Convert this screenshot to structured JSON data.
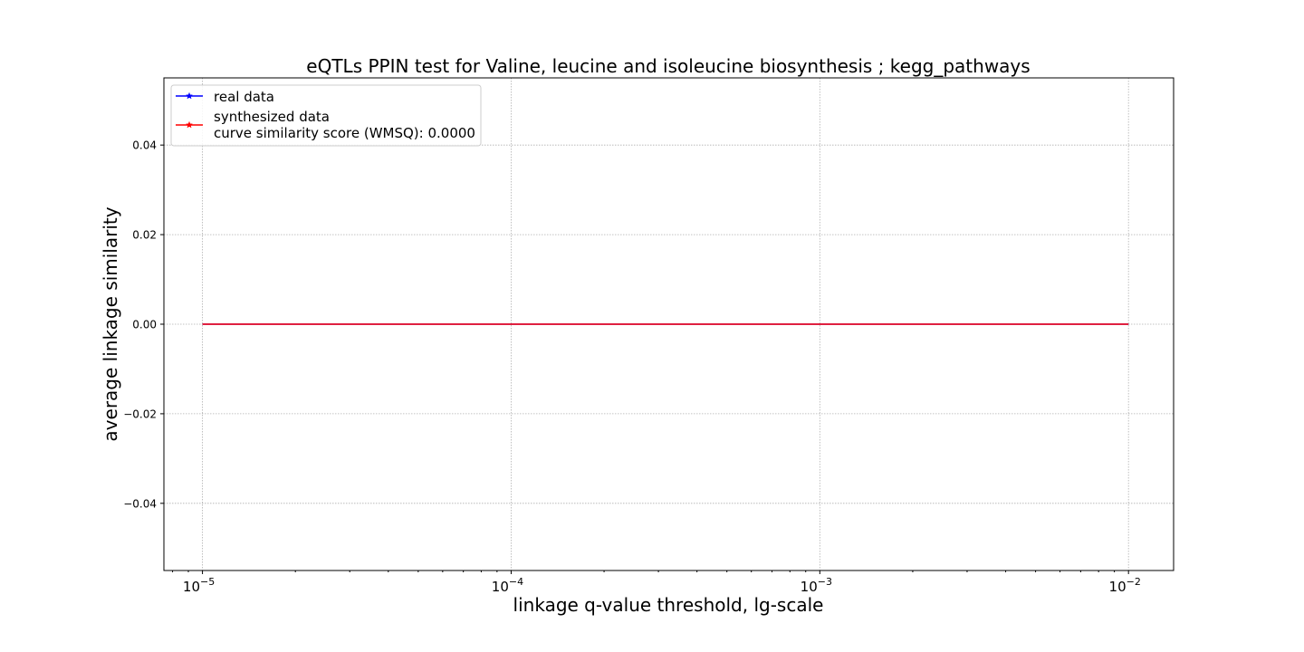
{
  "chart_data": {
    "type": "line",
    "title": "eQTLs PPIN test for Valine, leucine and isoleucine biosynthesis ; kegg_pathways",
    "xlabel": "linkage q-value threshold, lg-scale",
    "ylabel": "average linkage similarity",
    "x_scale": "log",
    "xlim": [
      7.5e-06,
      0.014
    ],
    "ylim": [
      -0.055,
      0.055
    ],
    "grid": true,
    "legend_position": "top-left",
    "x_ticks": [
      {
        "value": 1e-05,
        "base": "10",
        "exp": "−5"
      },
      {
        "value": 0.0001,
        "base": "10",
        "exp": "−4"
      },
      {
        "value": 0.001,
        "base": "10",
        "exp": "−3"
      },
      {
        "value": 0.01,
        "base": "10",
        "exp": "−2"
      }
    ],
    "y_ticks": [
      {
        "value": -0.04,
        "label": "−0.04"
      },
      {
        "value": -0.02,
        "label": "−0.02"
      },
      {
        "value": 0.0,
        "label": "0.00"
      },
      {
        "value": 0.02,
        "label": "0.02"
      },
      {
        "value": 0.04,
        "label": "0.04"
      }
    ],
    "series": [
      {
        "name": "real data",
        "color": "#0000ff",
        "x": [
          1e-05,
          0.01
        ],
        "y": [
          0.0,
          0.0
        ]
      },
      {
        "name": "synthesized data",
        "name_line2": "curve similarity score (WMSQ): 0.0000",
        "color": "#ff0000",
        "x": [
          1e-05,
          0.01
        ],
        "y": [
          0.0,
          0.0
        ]
      }
    ]
  }
}
